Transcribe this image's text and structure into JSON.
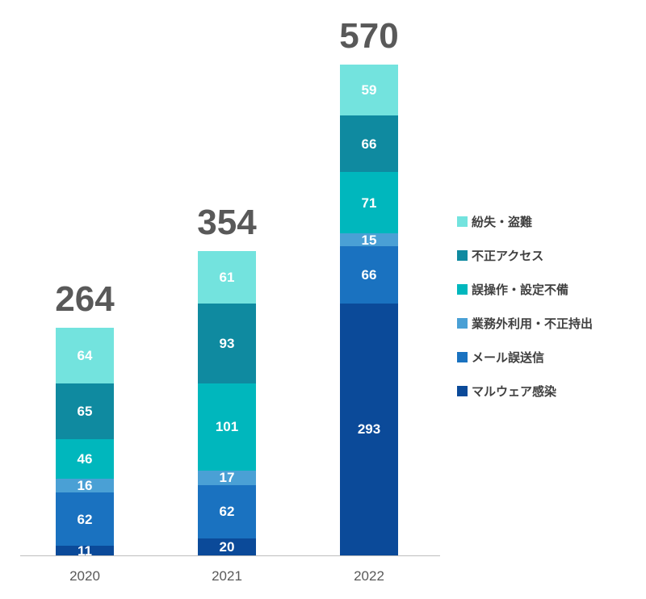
{
  "chart_data": {
    "type": "bar",
    "stacked": true,
    "title": "",
    "xlabel": "",
    "ylabel": "",
    "grid": false,
    "legend_position": "right",
    "categories": [
      "2020",
      "2021",
      "2022"
    ],
    "totals": [
      264,
      354,
      570
    ],
    "series": [
      {
        "name": "マルウェア感染",
        "color": "#0b4a99",
        "values": [
          11,
          20,
          293
        ]
      },
      {
        "name": "メール誤送信",
        "color": "#1a72c0",
        "values": [
          62,
          62,
          66
        ]
      },
      {
        "name": "業務外利用・不正持出",
        "color": "#4aa0d5",
        "values": [
          16,
          17,
          15
        ]
      },
      {
        "name": "誤操作・設定不備",
        "color": "#00b7bd",
        "values": [
          46,
          101,
          71
        ]
      },
      {
        "name": "不正アクセス",
        "color": "#0f8aa0",
        "values": [
          65,
          93,
          66
        ]
      },
      {
        "name": "紛失・盗難",
        "color": "#73e3de",
        "values": [
          64,
          61,
          59
        ]
      }
    ],
    "legend": [
      "紛失・盗難",
      "不正アクセス",
      "誤操作・設定不備",
      "業務外利用・不正持出",
      "メール誤送信",
      "マルウェア感染"
    ],
    "text_colors": {
      "total": "#595959",
      "axis_label": "#595959",
      "segment_value": "#ffffff"
    }
  }
}
